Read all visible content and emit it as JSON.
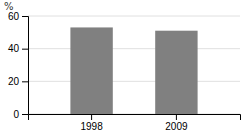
{
  "chart_data": {
    "type": "bar",
    "categories": [
      "1998",
      "2009"
    ],
    "values": [
      53,
      51
    ],
    "color": "#808080",
    "ylabel": "%",
    "ylim": [
      0,
      60
    ],
    "yticks": [
      0,
      20,
      40,
      60
    ],
    "grid": true
  }
}
